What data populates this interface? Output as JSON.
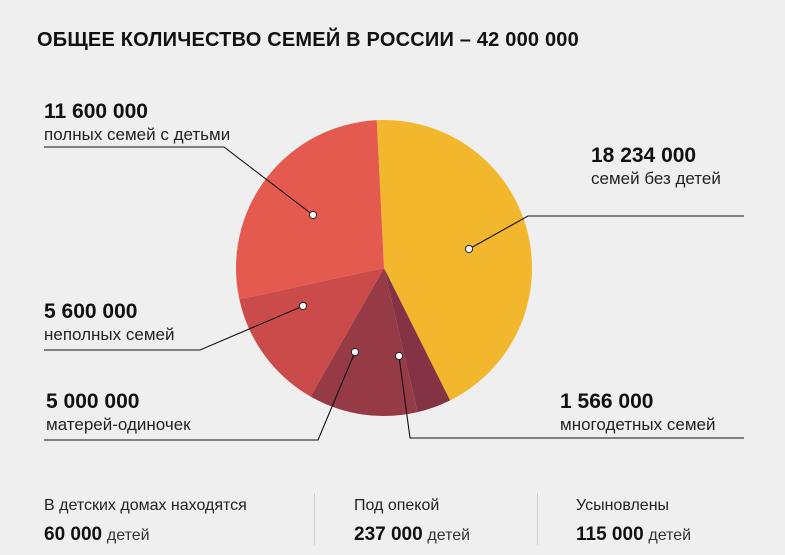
{
  "title": "ОБЩЕЕ КОЛИЧЕСТВО СЕМЕЙ В РОССИИ – 42 000 000",
  "chart_data": {
    "type": "pie",
    "total": 42000000,
    "slices": [
      {
        "label": "семей без детей",
        "display": "18 234 000",
        "value": 18234000,
        "color": "#f3b72d"
      },
      {
        "label": "многодетных семей",
        "display": "1 566 000",
        "value": 1566000,
        "color": "#833343"
      },
      {
        "label": "матерей-одиночек",
        "display": "5 000 000",
        "value": 5000000,
        "color": "#963a46"
      },
      {
        "label": "неполных семей",
        "display": "5 600 000",
        "value": 5600000,
        "color": "#ca4b49"
      },
      {
        "label": "полных семей с детьми",
        "display": "11 600 000",
        "value": 11600000,
        "color": "#e45a4e"
      }
    ]
  },
  "stats": [
    {
      "caption": "В детских домах находятся",
      "value": "60 000",
      "unit": "детей"
    },
    {
      "caption": "Под опекой",
      "value": "237 000",
      "unit": "детей"
    },
    {
      "caption": "Усыновлены",
      "value": "115 000",
      "unit": "детей"
    }
  ]
}
